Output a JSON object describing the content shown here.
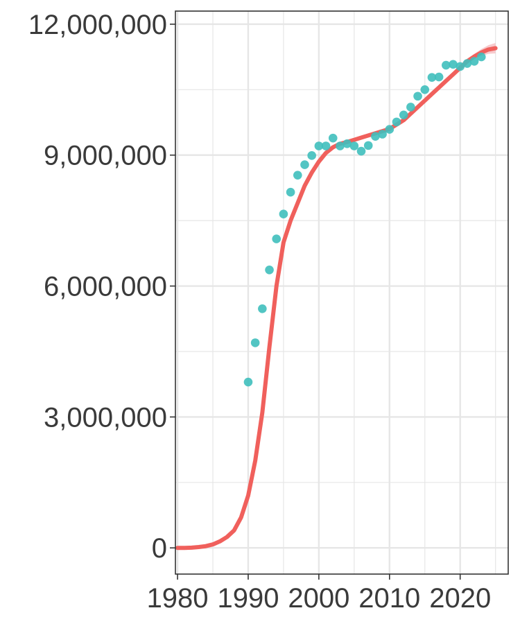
{
  "chart_data": {
    "type": "line",
    "title": "",
    "xlabel": "",
    "ylabel": "",
    "xlim": [
      1979.7,
      2026.8
    ],
    "ylim": [
      -600000,
      12300000
    ],
    "grid": true,
    "legend": "none",
    "x_ticks": [
      1980,
      1990,
      2000,
      2010,
      2020
    ],
    "x_tick_labels": [
      "1980",
      "1990",
      "2000",
      "2010",
      "2020"
    ],
    "y_ticks": [
      0,
      3000000,
      6000000,
      9000000,
      12000000
    ],
    "y_tick_labels": [
      "0",
      "3,000,000",
      "6,000,000",
      "9,000,000",
      "12,000,000"
    ],
    "colors": {
      "fit_line": "#f0605c",
      "fit_band": "#f4b4b8",
      "points": "#3fbfbc",
      "grid": "#e6e6e6",
      "axis": "#333333",
      "text": "#3a3a3a"
    },
    "series": [
      {
        "kind": "fitted-line",
        "x": [
          1980,
          1981,
          1982,
          1983,
          1984,
          1985,
          1986,
          1987,
          1988,
          1989,
          1990,
          1991,
          1992,
          1993,
          1994,
          1995,
          1996,
          1997,
          1998,
          1999,
          2000,
          2001,
          2002,
          2003,
          2004,
          2005,
          2006,
          2007,
          2008,
          2009,
          2010,
          2011,
          2012,
          2013,
          2014,
          2015,
          2016,
          2017,
          2018,
          2019,
          2020,
          2021,
          2022,
          2023,
          2024,
          2025
        ],
        "y": [
          0,
          0,
          5000,
          20000,
          40000,
          80000,
          150000,
          250000,
          400000,
          700000,
          1200000,
          2000000,
          3100000,
          4600000,
          6000000,
          7000000,
          7500000,
          7900000,
          8300000,
          8600000,
          8850000,
          9050000,
          9180000,
          9260000,
          9300000,
          9350000,
          9400000,
          9450000,
          9500000,
          9550000,
          9600000,
          9700000,
          9800000,
          9950000,
          10100000,
          10250000,
          10400000,
          10550000,
          10700000,
          10850000,
          11000000,
          11150000,
          11260000,
          11350000,
          11420000,
          11450000
        ],
        "band_halfwidth": [
          0,
          0,
          0,
          0,
          0,
          0,
          0,
          0,
          0,
          0,
          0,
          0,
          0,
          0,
          0,
          0,
          0,
          0,
          0,
          0,
          0,
          0,
          0,
          0,
          0,
          0,
          0,
          0,
          0,
          0,
          0,
          0,
          0,
          0,
          0,
          0,
          0,
          0,
          0,
          0,
          20000,
          40000,
          60000,
          80000,
          100000,
          120000
        ]
      },
      {
        "kind": "points",
        "x": [
          1990,
          1991,
          1992,
          1993,
          1994,
          1995,
          1996,
          1997,
          1998,
          1999,
          2000,
          2001,
          2002,
          2003,
          2004,
          2005,
          2006,
          2007,
          2008,
          2009,
          2010,
          2011,
          2012,
          2013,
          2014,
          2015,
          2016,
          2017,
          2018,
          2019,
          2020,
          2021,
          2022,
          2023
        ],
        "y": [
          3800000,
          4700000,
          5480000,
          6370000,
          7080000,
          7650000,
          8150000,
          8540000,
          8780000,
          8990000,
          9210000,
          9210000,
          9390000,
          9210000,
          9260000,
          9210000,
          9090000,
          9220000,
          9430000,
          9480000,
          9590000,
          9760000,
          9920000,
          10100000,
          10350000,
          10500000,
          10780000,
          10790000,
          11060000,
          11080000,
          11030000,
          11100000,
          11150000,
          11250000
        ]
      }
    ]
  }
}
